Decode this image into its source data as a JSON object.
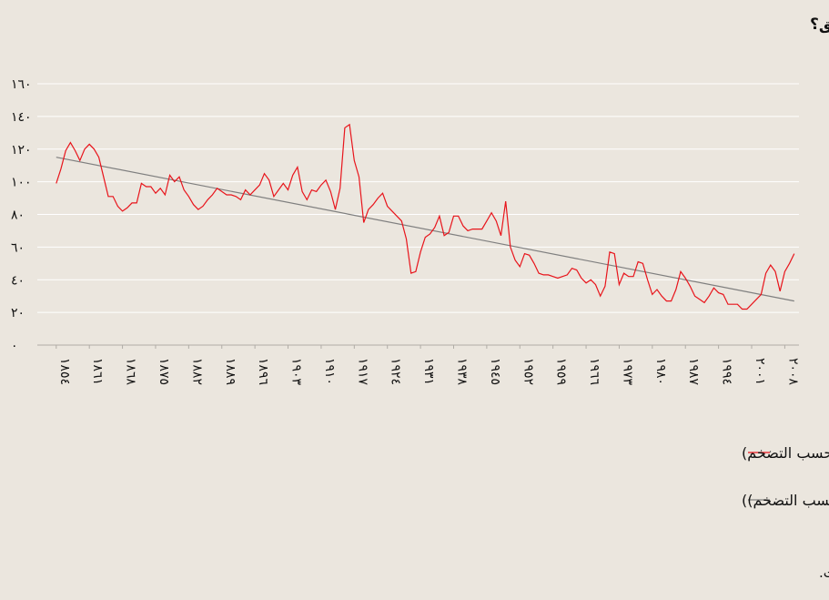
{
  "chart_data": {
    "type": "line",
    "title": "قرن من التدهور أم حقبة جديدة في الأفق؟",
    "source": "المصدر: وحدة إيكونوميست للمعلومات.",
    "x": [
      1854,
      1855,
      1856,
      1857,
      1858,
      1859,
      1860,
      1861,
      1862,
      1863,
      1864,
      1865,
      1866,
      1867,
      1868,
      1869,
      1870,
      1871,
      1872,
      1873,
      1874,
      1875,
      1876,
      1877,
      1878,
      1879,
      1880,
      1881,
      1882,
      1883,
      1884,
      1885,
      1886,
      1887,
      1888,
      1889,
      1890,
      1891,
      1892,
      1893,
      1894,
      1895,
      1896,
      1897,
      1898,
      1899,
      1900,
      1901,
      1902,
      1903,
      1904,
      1905,
      1906,
      1907,
      1908,
      1909,
      1910,
      1911,
      1912,
      1913,
      1914,
      1915,
      1916,
      1917,
      1918,
      1919,
      1920,
      1921,
      1922,
      1923,
      1924,
      1925,
      1926,
      1927,
      1928,
      1929,
      1930,
      1931,
      1932,
      1933,
      1934,
      1935,
      1936,
      1937,
      1938,
      1939,
      1940,
      1941,
      1942,
      1943,
      1944,
      1945,
      1946,
      1947,
      1948,
      1949,
      1950,
      1951,
      1952,
      1953,
      1954,
      1955,
      1956,
      1957,
      1958,
      1959,
      1960,
      1961,
      1962,
      1963,
      1964,
      1965,
      1966,
      1967,
      1968,
      1969,
      1970,
      1971,
      1972,
      1973,
      1974,
      1975,
      1976,
      1977,
      1978,
      1979,
      1980,
      1981,
      1982,
      1983,
      1984,
      1985,
      1986,
      1987,
      1988,
      1989,
      1990,
      1991,
      1992,
      1993,
      1994,
      1995,
      1996,
      1997,
      1998,
      1999,
      2000,
      2001,
      2002,
      2003,
      2004,
      2005,
      2006,
      2007,
      2008,
      2009,
      2010
    ],
    "series": [
      {
        "name": "المؤشر الصناعي (معدَّل حسب التضخم)",
        "color": "#e8141b",
        "values": [
          99,
          108,
          119,
          124,
          119,
          113,
          120,
          123,
          120,
          115,
          103,
          91,
          91,
          85,
          82,
          84,
          87,
          87,
          99,
          97,
          97,
          93,
          96,
          92,
          104,
          100,
          103,
          95,
          91,
          86,
          83,
          85,
          89,
          92,
          96,
          94,
          92,
          92,
          91,
          89,
          95,
          92,
          95,
          98,
          105,
          101,
          91,
          95,
          99,
          95,
          104,
          109,
          94,
          89,
          95,
          94,
          98,
          101,
          94,
          83,
          96,
          133,
          135,
          113,
          103,
          75,
          83,
          86,
          90,
          93,
          85,
          82,
          79,
          76,
          65,
          44,
          45,
          57,
          66,
          68,
          72,
          79,
          67,
          69,
          79,
          79,
          73,
          70,
          71,
          71,
          71,
          76,
          81,
          76,
          67,
          88,
          60,
          52,
          48,
          56,
          55,
          50,
          44,
          43,
          43,
          42,
          41,
          42,
          43,
          47,
          46,
          41,
          38,
          40,
          37,
          30,
          36,
          57,
          56,
          37,
          44,
          42,
          42,
          51,
          50,
          40,
          31,
          34,
          30,
          27,
          27,
          34,
          45,
          41,
          36,
          30,
          28,
          26,
          30,
          35,
          32,
          31,
          25,
          25,
          25,
          22,
          22,
          25,
          28,
          31,
          44,
          49,
          45,
          33,
          45,
          50,
          56
        ]
      },
      {
        "name": "المؤشر الخطي (المؤشر الصناعي (معدَّل حسب التضخم))",
        "color": "#7f7f7f",
        "x": [
          1854,
          2010
        ],
        "values": [
          115,
          27
        ]
      }
    ],
    "xlim": [
      1850,
      2011
    ],
    "xticks": [
      {
        "value": 1854,
        "label": "١٨٥٤"
      },
      {
        "value": 1861,
        "label": "١٨٦١"
      },
      {
        "value": 1868,
        "label": "١٨٦٨"
      },
      {
        "value": 1875,
        "label": "١٨٧٥"
      },
      {
        "value": 1882,
        "label": "١٨٨٢"
      },
      {
        "value": 1889,
        "label": "١٨٨٩"
      },
      {
        "value": 1896,
        "label": "١٨٩٦"
      },
      {
        "value": 1903,
        "label": "١٩٠٣"
      },
      {
        "value": 1910,
        "label": "١٩١٠"
      },
      {
        "value": 1917,
        "label": "١٩١٧"
      },
      {
        "value": 1924,
        "label": "١٩٢٤"
      },
      {
        "value": 1931,
        "label": "١٩٣١"
      },
      {
        "value": 1938,
        "label": "١٩٣٨"
      },
      {
        "value": 1945,
        "label": "١٩٤٥"
      },
      {
        "value": 1952,
        "label": "١٩٥٢"
      },
      {
        "value": 1959,
        "label": "١٩٥٩"
      },
      {
        "value": 1966,
        "label": "١٩٦٦"
      },
      {
        "value": 1973,
        "label": "١٩٧٣"
      },
      {
        "value": 1980,
        "label": "١٩٨٠"
      },
      {
        "value": 1987,
        "label": "١٩٨٧"
      },
      {
        "value": 1994,
        "label": "١٩٩٤"
      },
      {
        "value": 2001,
        "label": "٢٠٠١"
      },
      {
        "value": 2008,
        "label": "٢٠٠٨"
      }
    ],
    "ylim": [
      0,
      160
    ],
    "yticks": [
      {
        "value": 0,
        "label": "٠"
      },
      {
        "value": 20,
        "label": "٢٠"
      },
      {
        "value": 40,
        "label": "٤٠"
      },
      {
        "value": 60,
        "label": "٦٠"
      },
      {
        "value": 80,
        "label": "٨٠"
      },
      {
        "value": 100,
        "label": "١٠٠"
      },
      {
        "value": 120,
        "label": "١٢٠"
      },
      {
        "value": 140,
        "label": "١٤٠"
      },
      {
        "value": 160,
        "label": "١٦٠"
      }
    ],
    "grid": true
  }
}
